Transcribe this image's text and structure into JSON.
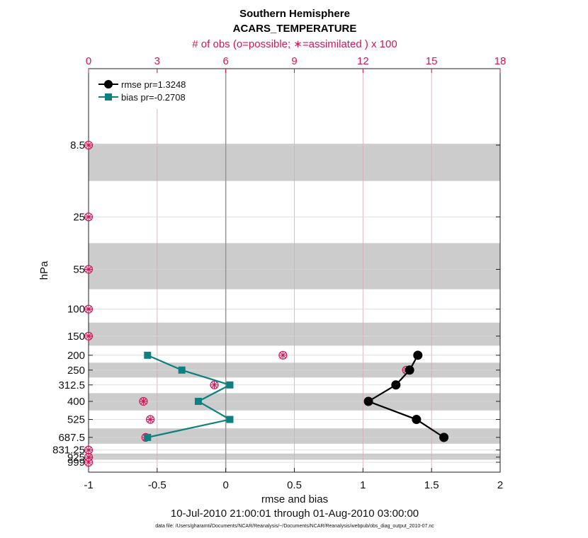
{
  "chart_data": {
    "type": "line",
    "title": "Southern Hemisphere",
    "subtitle": "ACARS_TEMPERATURE",
    "top_axis_label": "# of obs (o=possible; ∗=assimilated ) x 100",
    "xlabel": "rmse and bias",
    "ylabel": "hPa",
    "date_range": "10-Jul-2010 21:00:01 through 01-Aug-2010 03:00:00",
    "footnote": "data file: /Users/gharamti/Documents/NCAR/Reanalysis/~/Documents/NCAR/Reanalysis/webpub/obs_diag_output_2010-07.nc",
    "xlim": [
      -1,
      2
    ],
    "x_ticks": [
      -1,
      -0.5,
      0,
      0.5,
      1,
      1.5,
      2
    ],
    "x_tick_labels": [
      "-1",
      "-0.5",
      "0",
      "0.5",
      "1",
      "1.5",
      "2"
    ],
    "top_xlim": [
      0,
      18
    ],
    "top_ticks": [
      0,
      3,
      6,
      9,
      12,
      15,
      18
    ],
    "top_tick_labels": [
      "0",
      "3",
      "6",
      "9",
      "12",
      "15",
      "18"
    ],
    "y_levels": [
      8.5,
      25,
      55,
      100,
      150,
      200,
      250,
      312.5,
      400,
      525,
      687.5,
      831.25,
      925,
      999
    ],
    "y_tick_labels": [
      "8.5",
      "25",
      "55",
      "100",
      "150",
      "200",
      "250",
      "312.5",
      "400",
      "525",
      "687.5",
      "831.25",
      "925",
      "999"
    ],
    "y_order": "reversed",
    "series": [
      {
        "name": "rmse pr=1.3248",
        "color": "#000000",
        "marker": "circle",
        "levels": [
          200,
          250,
          312.5,
          400,
          525,
          687.5
        ],
        "values": [
          1.4,
          1.34,
          1.24,
          1.04,
          1.39,
          1.59
        ]
      },
      {
        "name": "bias pr=-0.2708",
        "color": "#0e8080",
        "marker": "square",
        "levels": [
          200,
          250,
          312.5,
          400,
          525,
          687.5
        ],
        "values": [
          -0.57,
          -0.32,
          0.03,
          -0.2,
          0.03,
          -0.57
        ]
      }
    ],
    "obs_counts": {
      "color": "#d4145a",
      "levels": [
        8.5,
        25,
        55,
        100,
        150,
        200,
        250,
        312.5,
        400,
        525,
        687.5,
        831.25,
        925,
        999
      ],
      "possible": [
        0,
        0,
        0,
        0,
        0,
        8.5,
        13.9,
        5.5,
        2.4,
        2.7,
        2.5,
        0,
        0,
        0
      ],
      "assimilated": [
        0,
        0,
        0,
        0,
        0,
        8.5,
        13.9,
        5.5,
        2.4,
        2.7,
        2.5,
        0,
        0,
        0
      ]
    },
    "grid": true,
    "legend_position": "top-left"
  }
}
